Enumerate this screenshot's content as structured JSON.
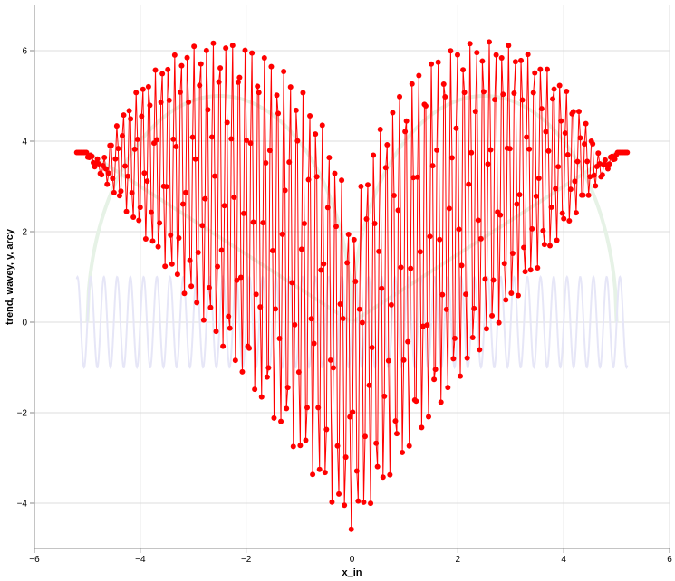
{
  "chart_data": {
    "type": "line",
    "title": "",
    "xlabel": "x_in",
    "ylabel": "trend, wavey, y, arcy",
    "xlim": [
      -6,
      6
    ],
    "ylim": [
      -5,
      7
    ],
    "x_ticks": [
      -6,
      -4,
      -2,
      0,
      2,
      4,
      6
    ],
    "x_tick_labels": [
      "−6",
      "−4",
      "−2",
      "0",
      "2",
      "4",
      "6"
    ],
    "y_ticks": [
      -4,
      -2,
      0,
      2,
      4,
      6
    ],
    "y_tick_labels": [
      "−4",
      "−2",
      "0",
      "2",
      "4",
      "6"
    ],
    "grid": true,
    "legend": "none",
    "x_range": [
      -5.2,
      5.2
    ],
    "sample_count": 400,
    "series": [
      {
        "role": "trend",
        "style": "line",
        "color": "#e6f2e6",
        "formula": "heart lower branch: |x| * 0.75 (y = 0 at x=0, y≈3.7 at |x|=5)",
        "values_at": {
          "-5": 3.7,
          "-4": 3.0,
          "-2": 1.5,
          "0": 0,
          "2": 1.5,
          "4": 3.0,
          "5": 3.7
        }
      },
      {
        "role": "arcy",
        "style": "line",
        "color": "#e6f2e6",
        "formula": "heart upper lobes: semicircles centered at x=±2.5, radius 2.5, height 5",
        "values_at": {
          "-5": 0,
          "-4": 4.0,
          "-2.5": 5.0,
          "-1": 4.0,
          "0": 4.0,
          "1": 4.0,
          "2.5": 5.0,
          "4": 4.0,
          "5": 0
        }
      },
      {
        "role": "wavey",
        "style": "line",
        "color": "#e6e6f7",
        "formula": "sin wave, amplitude 1, visible near x edges",
        "amplitude": 1,
        "period": 0.25
      },
      {
        "role": "y",
        "style": "line+points",
        "color": "#ff0000",
        "formula": "oscillation between trend (lower) and arcy (upper) envelopes",
        "points_count": 400
      }
    ]
  }
}
